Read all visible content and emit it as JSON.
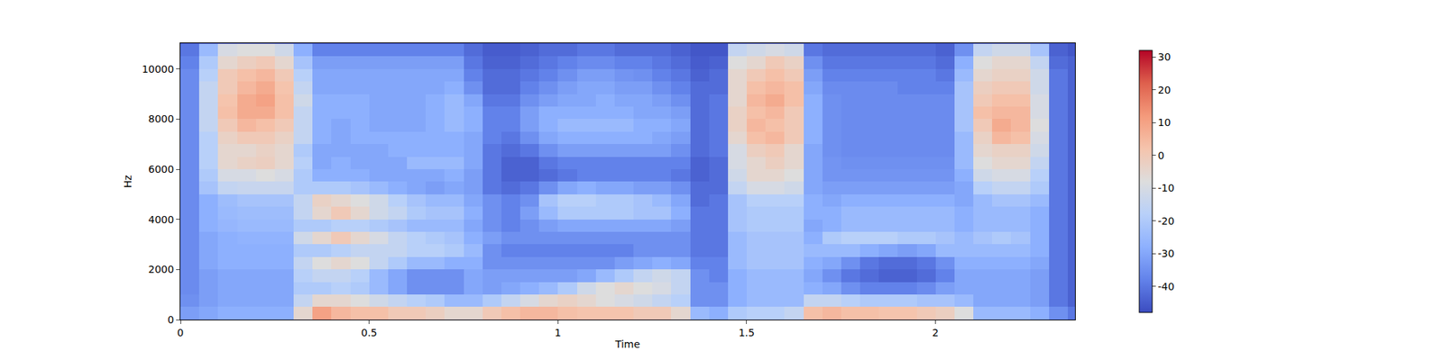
{
  "chart_data": {
    "type": "heatmap",
    "x_label": "Time",
    "y_label": "Hz",
    "xlim": [
      0,
      2.37
    ],
    "xticks": [
      0,
      0.5,
      1,
      1.5,
      2
    ],
    "ylim": [
      0,
      11025
    ],
    "yticks": [
      0,
      2000,
      4000,
      6000,
      8000,
      10000
    ],
    "colorbar_range": [
      -48,
      32
    ],
    "colorbar_ticks": [
      -40,
      -30,
      -20,
      -10,
      0,
      10,
      20,
      30
    ],
    "x": [
      0.025,
      0.075,
      0.125,
      0.175,
      0.225,
      0.275,
      0.325,
      0.375,
      0.425,
      0.475,
      0.525,
      0.575,
      0.625,
      0.675,
      0.725,
      0.775,
      0.825,
      0.875,
      0.925,
      0.975,
      1.025,
      1.075,
      1.125,
      1.175,
      1.225,
      1.275,
      1.325,
      1.375,
      1.425,
      1.475,
      1.525,
      1.575,
      1.625,
      1.675,
      1.725,
      1.775,
      1.825,
      1.875,
      1.925,
      1.975,
      2.025,
      2.075,
      2.125,
      2.175,
      2.225,
      2.275,
      2.325,
      2.375
    ],
    "y": [
      250,
      750,
      1250,
      1750,
      2250,
      2750,
      3250,
      3750,
      4250,
      4750,
      5250,
      5750,
      6250,
      6750,
      7250,
      7750,
      8250,
      8750,
      9250,
      9750,
      10250,
      10750
    ],
    "z": [
      [
        -32,
        -35,
        -36,
        -36,
        -36,
        -36,
        -36,
        -36,
        -36,
        -36,
        -36,
        -36,
        -36,
        -36,
        -36,
        -36,
        -36,
        -36,
        -36,
        -36,
        -38,
        -40
      ],
      [
        -30,
        -32,
        -32,
        -32,
        -30,
        -30,
        -30,
        -28,
        -28,
        -28,
        -22,
        -20,
        -18,
        -18,
        -18,
        -15,
        -15,
        -15,
        -15,
        -18,
        -20,
        -25
      ],
      [
        -28,
        -30,
        -30,
        -30,
        -28,
        -28,
        -28,
        -26,
        -25,
        -24,
        -15,
        -10,
        -5,
        -5,
        -3,
        0,
        3,
        2,
        0,
        0,
        -5,
        -10
      ],
      [
        -28,
        -30,
        -30,
        -30,
        -28,
        -28,
        -27,
        -25,
        -24,
        -22,
        -14,
        -10,
        -3,
        -5,
        0,
        5,
        8,
        8,
        5,
        3,
        -2,
        -8
      ],
      [
        -28,
        -30,
        -30,
        -30,
        -28,
        -28,
        -27,
        -25,
        -24,
        -22,
        -14,
        -8,
        -2,
        -3,
        0,
        3,
        8,
        10,
        8,
        5,
        0,
        -8
      ],
      [
        -28,
        -30,
        -30,
        -30,
        -28,
        -28,
        -27,
        -25,
        -24,
        -22,
        -14,
        -10,
        -5,
        -5,
        -3,
        0,
        3,
        3,
        2,
        0,
        -5,
        -12
      ],
      [
        -5,
        -15,
        -20,
        -18,
        -15,
        -20,
        -12,
        -20,
        -15,
        -15,
        -20,
        -20,
        -18,
        -20,
        -15,
        -15,
        -15,
        -12,
        -15,
        -18,
        -22,
        -28
      ],
      [
        10,
        -5,
        -20,
        -15,
        -8,
        -20,
        -5,
        -20,
        -5,
        -3,
        -20,
        -28,
        -30,
        -30,
        -28,
        -28,
        -28,
        -28,
        -30,
        -30,
        -32,
        -38
      ],
      [
        5,
        -5,
        -18,
        -15,
        -5,
        -18,
        0,
        -18,
        0,
        -5,
        -20,
        -28,
        -28,
        -30,
        -30,
        -30,
        -28,
        -28,
        -30,
        -30,
        -32,
        -38
      ],
      [
        3,
        -8,
        -20,
        -18,
        -8,
        -15,
        -5,
        -18,
        -5,
        -8,
        -22,
        -28,
        -30,
        -30,
        -28,
        -28,
        -28,
        -28,
        -30,
        -30,
        -32,
        -38
      ],
      [
        3,
        -12,
        -25,
        -25,
        -15,
        -15,
        -10,
        -20,
        -12,
        -12,
        -25,
        -30,
        -30,
        -30,
        -28,
        -30,
        -30,
        -30,
        -30,
        -30,
        -32,
        -38
      ],
      [
        0,
        -15,
        -30,
        -30,
        -20,
        -15,
        -15,
        -22,
        -15,
        -18,
        -28,
        -30,
        -30,
        -28,
        -28,
        -30,
        -30,
        -30,
        -30,
        -30,
        -32,
        -38
      ],
      [
        0,
        -18,
        -35,
        -35,
        -25,
        -18,
        -18,
        -25,
        -20,
        -22,
        -30,
        -30,
        -25,
        -28,
        -28,
        -30,
        -30,
        -30,
        -30,
        -30,
        -32,
        -38
      ],
      [
        -2,
        -20,
        -35,
        -35,
        -25,
        -18,
        -20,
        -25,
        -22,
        -25,
        -32,
        -30,
        -25,
        -28,
        -28,
        -28,
        -28,
        -28,
        -30,
        -30,
        -32,
        -38
      ],
      [
        -5,
        -25,
        -35,
        -35,
        -28,
        -20,
        -22,
        -25,
        -22,
        -25,
        -30,
        -28,
        -25,
        -28,
        -28,
        -25,
        -25,
        -25,
        -28,
        -30,
        -32,
        -38
      ],
      [
        -5,
        -25,
        -30,
        -30,
        -28,
        -25,
        -28,
        -30,
        -28,
        -30,
        -32,
        -32,
        -30,
        -30,
        -30,
        -28,
        -28,
        -30,
        -35,
        -38,
        -40,
        -42
      ],
      [
        0,
        -20,
        -32,
        -32,
        -35,
        -35,
        -32,
        -35,
        -35,
        -35,
        -40,
        -40,
        -40,
        -40,
        -38,
        -38,
        -38,
        -40,
        -42,
        -42,
        -44,
        -45
      ],
      [
        3,
        -15,
        -30,
        -32,
        -35,
        -38,
        -35,
        -38,
        -38,
        -38,
        -42,
        -44,
        -44,
        -42,
        -40,
        -38,
        -38,
        -40,
        -42,
        -42,
        -44,
        -45
      ],
      [
        5,
        -10,
        -28,
        -32,
        -35,
        -38,
        -35,
        -35,
        -32,
        -35,
        -40,
        -44,
        -44,
        -40,
        -35,
        -32,
        -32,
        -35,
        -38,
        -40,
        -42,
        -44
      ],
      [
        5,
        -5,
        -25,
        -32,
        -35,
        -38,
        -35,
        -32,
        -25,
        -22,
        -35,
        -42,
        -40,
        -35,
        -30,
        -28,
        -28,
        -32,
        -35,
        -38,
        -40,
        -42
      ],
      [
        3,
        -3,
        -20,
        -32,
        -35,
        -38,
        -35,
        -30,
        -20,
        -18,
        -30,
        -40,
        -38,
        -32,
        -28,
        -25,
        -28,
        -30,
        -32,
        -35,
        -38,
        -42
      ],
      [
        2,
        -5,
        -12,
        -30,
        -35,
        -38,
        -35,
        -30,
        -20,
        -18,
        -28,
        -38,
        -38,
        -32,
        -28,
        -25,
        -28,
        -30,
        -30,
        -32,
        -36,
        -40
      ],
      [
        2,
        -8,
        -8,
        -25,
        -35,
        -38,
        -35,
        -30,
        -20,
        -20,
        -30,
        -38,
        -38,
        -32,
        -28,
        -25,
        -28,
        -28,
        -30,
        -32,
        -36,
        -40
      ],
      [
        2,
        -10,
        -5,
        -20,
        -32,
        -38,
        -35,
        -30,
        -20,
        -20,
        -30,
        -38,
        -38,
        -32,
        -28,
        -25,
        -28,
        -30,
        -32,
        -34,
        -38,
        -42
      ],
      [
        0,
        -12,
        -8,
        -15,
        -30,
        -35,
        -35,
        -30,
        -22,
        -22,
        -32,
        -38,
        -38,
        -32,
        -28,
        -28,
        -30,
        -30,
        -32,
        -35,
        -38,
        -42
      ],
      [
        0,
        -15,
        -10,
        -12,
        -28,
        -35,
        -35,
        -30,
        -22,
        -25,
        -32,
        -38,
        -38,
        -32,
        -30,
        -28,
        -30,
        -32,
        -35,
        -38,
        -40,
        -42
      ],
      [
        -5,
        -18,
        -15,
        -15,
        -30,
        -35,
        -35,
        -32,
        -28,
        -30,
        -35,
        -40,
        -38,
        -35,
        -32,
        -30,
        -32,
        -35,
        -38,
        -40,
        -42,
        -44
      ],
      [
        -25,
        -35,
        -35,
        -35,
        -38,
        -40,
        -40,
        -40,
        -40,
        -42,
        -42,
        -44,
        -44,
        -42,
        -42,
        -42,
        -42,
        -42,
        -42,
        -44,
        -45,
        -46
      ],
      [
        -28,
        -35,
        -35,
        -38,
        -38,
        -40,
        -40,
        -40,
        -40,
        -40,
        -42,
        -42,
        -42,
        -40,
        -40,
        -40,
        -40,
        -40,
        -42,
        -42,
        -44,
        -46
      ],
      [
        -20,
        -28,
        -28,
        -28,
        -25,
        -25,
        -25,
        -22,
        -22,
        -22,
        -15,
        -12,
        -10,
        -10,
        -5,
        -3,
        -3,
        -5,
        -5,
        -5,
        -8,
        -15
      ],
      [
        -18,
        -25,
        -25,
        -25,
        -22,
        -22,
        -22,
        -20,
        -20,
        -18,
        -10,
        -5,
        -5,
        -2,
        3,
        5,
        3,
        5,
        3,
        0,
        -5,
        -12
      ],
      [
        -18,
        -25,
        -25,
        -25,
        -22,
        -22,
        -22,
        -20,
        -20,
        -18,
        -10,
        -5,
        -2,
        0,
        5,
        3,
        5,
        8,
        5,
        3,
        0,
        -10
      ],
      [
        -15,
        -25,
        -25,
        -25,
        -22,
        -22,
        -22,
        -20,
        -20,
        -18,
        -12,
        -8,
        -5,
        -5,
        0,
        0,
        0,
        3,
        3,
        0,
        -3,
        -12
      ],
      [
        3,
        -15,
        -28,
        -30,
        -28,
        -25,
        -28,
        -30,
        -28,
        -28,
        -30,
        -30,
        -30,
        -30,
        -28,
        -28,
        -28,
        -28,
        -30,
        -32,
        -35,
        -40
      ],
      [
        5,
        -15,
        -30,
        -35,
        -30,
        -25,
        -20,
        -28,
        -28,
        -30,
        -32,
        -34,
        -34,
        -35,
        -35,
        -35,
        -35,
        -35,
        -36,
        -38,
        -40,
        -42
      ],
      [
        3,
        -18,
        -35,
        -40,
        -35,
        -25,
        -18,
        -25,
        -25,
        -28,
        -32,
        -34,
        -35,
        -36,
        -36,
        -36,
        -36,
        -36,
        -36,
        -38,
        -40,
        -42
      ],
      [
        3,
        -20,
        -38,
        -42,
        -40,
        -28,
        -18,
        -25,
        -25,
        -28,
        -32,
        -34,
        -35,
        -36,
        -36,
        -36,
        -36,
        -36,
        -36,
        -38,
        -40,
        -42
      ],
      [
        2,
        -20,
        -38,
        -44,
        -42,
        -30,
        -18,
        -25,
        -25,
        -28,
        -32,
        -34,
        -35,
        -36,
        -36,
        -36,
        -36,
        -36,
        -36,
        -38,
        -40,
        -42
      ],
      [
        2,
        -20,
        -38,
        -44,
        -42,
        -32,
        -20,
        -25,
        -25,
        -28,
        -32,
        -34,
        -35,
        -36,
        -36,
        -36,
        -36,
        -36,
        -38,
        -38,
        -40,
        -42
      ],
      [
        0,
        -22,
        -36,
        -42,
        -40,
        -30,
        -20,
        -25,
        -25,
        -28,
        -32,
        -34,
        -35,
        -36,
        -36,
        -36,
        -36,
        -36,
        -38,
        -38,
        -40,
        -42
      ],
      [
        -2,
        -22,
        -32,
        -38,
        -35,
        -25,
        -22,
        -25,
        -25,
        -28,
        -32,
        -34,
        -35,
        -36,
        -36,
        -36,
        -36,
        -36,
        -38,
        -40,
        -42,
        -44
      ],
      [
        -8,
        -25,
        -30,
        -30,
        -28,
        -25,
        -25,
        -28,
        -28,
        -30,
        -30,
        -28,
        -25,
        -25,
        -25,
        -22,
        -22,
        -22,
        -22,
        -25,
        -28,
        -35
      ],
      [
        -25,
        -30,
        -30,
        -30,
        -28,
        -25,
        -22,
        -25,
        -25,
        -25,
        -18,
        -12,
        -8,
        -5,
        -3,
        0,
        3,
        0,
        -2,
        -5,
        -8,
        -15
      ],
      [
        -25,
        -30,
        -30,
        -30,
        -28,
        -25,
        -20,
        -25,
        -25,
        -22,
        -15,
        -10,
        -5,
        -3,
        5,
        8,
        5,
        3,
        0,
        -3,
        -5,
        -12
      ],
      [
        -25,
        -30,
        -30,
        -30,
        -28,
        -25,
        -22,
        -25,
        -25,
        -22,
        -15,
        -10,
        -5,
        -3,
        3,
        5,
        5,
        3,
        0,
        -3,
        -5,
        -12
      ],
      [
        -28,
        -32,
        -32,
        -32,
        -30,
        -28,
        -28,
        -28,
        -28,
        -25,
        -20,
        -18,
        -15,
        -12,
        -10,
        -8,
        -10,
        -10,
        -12,
        -12,
        -15,
        -22
      ],
      [
        -35,
        -40,
        -40,
        -40,
        -40,
        -40,
        -40,
        -40,
        -40,
        -40,
        -40,
        -40,
        -40,
        -40,
        -40,
        -40,
        -40,
        -40,
        -40,
        -40,
        -42,
        -44
      ],
      [
        -40,
        -44,
        -44,
        -44,
        -44,
        -44,
        -44,
        -44,
        -44,
        -44,
        -44,
        -44,
        -44,
        -44,
        -44,
        -44,
        -44,
        -44,
        -44,
        -44,
        -44,
        -46
      ]
    ]
  }
}
